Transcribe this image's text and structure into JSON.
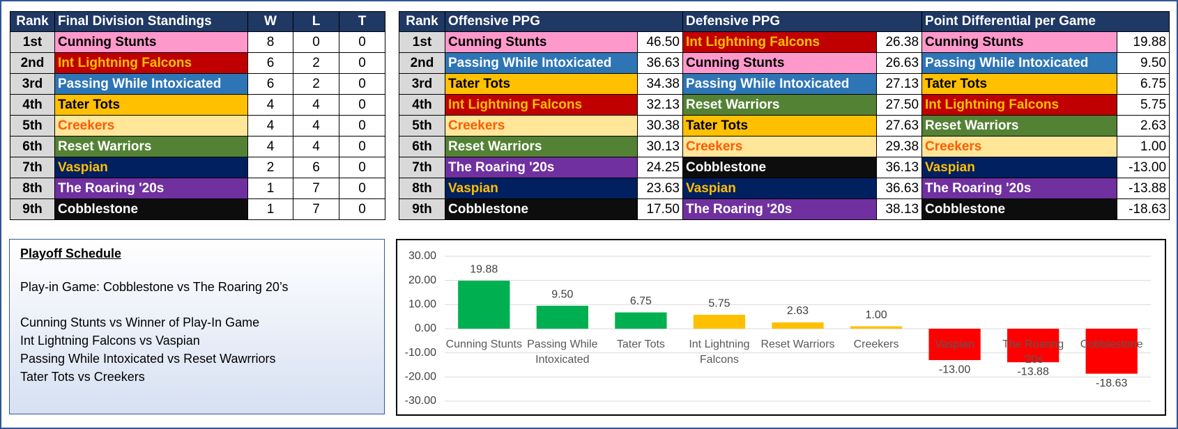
{
  "standings": {
    "header": [
      "Rank",
      "Final Division Standings",
      "W",
      "L",
      "T"
    ],
    "rows": [
      [
        "1st",
        {
          "text": "Cunning Stunts",
          "bg": "#ff99cc",
          "fg": "#000000"
        },
        8,
        0,
        0
      ],
      [
        "2nd",
        {
          "text": "Int Lightning Falcons",
          "bg": "#c00000",
          "fg": "#ffc000"
        },
        6,
        2,
        0
      ],
      [
        "3rd",
        {
          "text": "Passing While Intoxicated",
          "bg": "#2e75b6",
          "fg": "#ffffff"
        },
        6,
        2,
        0
      ],
      [
        "4th",
        {
          "text": "Tater Tots",
          "bg": "#ffc000",
          "fg": "#000000"
        },
        4,
        4,
        0
      ],
      [
        "5th",
        {
          "text": "Creekers",
          "bg": "#ffe699",
          "fg": "#ff5b00"
        },
        4,
        4,
        0
      ],
      [
        "6th",
        {
          "text": "Reset Warriors",
          "bg": "#548235",
          "fg": "#ffffff"
        },
        4,
        4,
        0
      ],
      [
        "7th",
        {
          "text": "Vaspian",
          "bg": "#002060",
          "fg": "#ffc000"
        },
        2,
        6,
        0
      ],
      [
        "8th",
        {
          "text": "The Roaring '20s",
          "bg": "#7030a0",
          "fg": "#ffffff"
        },
        1,
        7,
        0
      ],
      [
        "9th",
        {
          "text": "Cobblestone",
          "bg": "#0d0d0d",
          "fg": "#ffffff"
        },
        1,
        7,
        0
      ]
    ]
  },
  "stats": {
    "header": [
      "Rank",
      "Offensive PPG",
      "Defensive PPG",
      "Point Differential per Game"
    ],
    "rows": [
      [
        "1st",
        {
          "text": "Cunning Stunts",
          "bg": "#ff99cc",
          "fg": "#000000"
        },
        "46.50",
        {
          "text": "Int Lightning Falcons",
          "bg": "#c00000",
          "fg": "#ffc000"
        },
        "26.38",
        {
          "text": "Cunning Stunts",
          "bg": "#ff99cc",
          "fg": "#000000"
        },
        "19.88"
      ],
      [
        "2nd",
        {
          "text": "Passing While Intoxicated",
          "bg": "#2e75b6",
          "fg": "#ffffff"
        },
        "36.63",
        {
          "text": "Cunning Stunts",
          "bg": "#ff99cc",
          "fg": "#000000"
        },
        "26.63",
        {
          "text": "Passing While Intoxicated",
          "bg": "#2e75b6",
          "fg": "#ffffff"
        },
        "9.50"
      ],
      [
        "3rd",
        {
          "text": "Tater Tots",
          "bg": "#ffc000",
          "fg": "#000000"
        },
        "34.38",
        {
          "text": "Passing While Intoxicated",
          "bg": "#2e75b6",
          "fg": "#ffffff"
        },
        "27.13",
        {
          "text": "Tater Tots",
          "bg": "#ffc000",
          "fg": "#000000"
        },
        "6.75"
      ],
      [
        "4th",
        {
          "text": "Int Lightning Falcons",
          "bg": "#c00000",
          "fg": "#ffc000"
        },
        "32.13",
        {
          "text": "Reset Warriors",
          "bg": "#548235",
          "fg": "#ffffff"
        },
        "27.50",
        {
          "text": "Int Lightning Falcons",
          "bg": "#c00000",
          "fg": "#ffc000"
        },
        "5.75"
      ],
      [
        "5th",
        {
          "text": "Creekers",
          "bg": "#ffe699",
          "fg": "#ff5b00"
        },
        "30.38",
        {
          "text": "Tater Tots",
          "bg": "#ffc000",
          "fg": "#000000"
        },
        "27.63",
        {
          "text": "Reset Warriors",
          "bg": "#548235",
          "fg": "#ffffff"
        },
        "2.63"
      ],
      [
        "6th",
        {
          "text": "Reset Warriors",
          "bg": "#548235",
          "fg": "#ffffff"
        },
        "30.13",
        {
          "text": "Creekers",
          "bg": "#ffe699",
          "fg": "#ff5b00"
        },
        "29.38",
        {
          "text": "Creekers",
          "bg": "#ffe699",
          "fg": "#ff5b00"
        },
        "1.00"
      ],
      [
        "7th",
        {
          "text": "The Roaring '20s",
          "bg": "#7030a0",
          "fg": "#ffffff"
        },
        "24.25",
        {
          "text": "Cobblestone",
          "bg": "#0d0d0d",
          "fg": "#ffffff"
        },
        "36.13",
        {
          "text": "Vaspian",
          "bg": "#002060",
          "fg": "#ffc000"
        },
        "-13.00"
      ],
      [
        "8th",
        {
          "text": "Vaspian",
          "bg": "#002060",
          "fg": "#ffc000"
        },
        "23.63",
        {
          "text": "Vaspian",
          "bg": "#002060",
          "fg": "#ffc000"
        },
        "36.63",
        {
          "text": "The Roaring '20s",
          "bg": "#7030a0",
          "fg": "#ffffff"
        },
        "-13.88"
      ],
      [
        "9th",
        {
          "text": "Cobblestone",
          "bg": "#0d0d0d",
          "fg": "#ffffff"
        },
        "17.50",
        {
          "text": "The Roaring '20s",
          "bg": "#7030a0",
          "fg": "#ffffff"
        },
        "38.13",
        {
          "text": "Cobblestone",
          "bg": "#0d0d0d",
          "fg": "#ffffff"
        },
        "-18.63"
      ]
    ]
  },
  "playoff": {
    "title": "Playoff Schedule",
    "play_in": "Play-in Game: Cobblestone vs The Roaring 20’s",
    "matchups": [
      "Cunning Stunts vs Winner of Play-In Game",
      "Int Lightning Falcons vs Vaspian",
      "Passing While Intoxicated vs Reset Wawrriors",
      "Tater Tots vs Creekers"
    ]
  },
  "chart_data": {
    "type": "bar",
    "categories": [
      "Cunning Stunts",
      "Passing While Intoxicated",
      "Tater Tots",
      "Int Lightning Falcons",
      "Reset Warriors",
      "Creekers",
      "Vaspian",
      "The Roaring '20s",
      "Cobblestone"
    ],
    "values": [
      19.88,
      9.5,
      6.75,
      5.75,
      2.63,
      1.0,
      -13.0,
      -13.88,
      -18.63
    ],
    "value_labels": [
      "19.88",
      "9.50",
      "6.75",
      "5.75",
      "2.63",
      "1.00",
      "-13.00",
      "-13.88",
      "-18.63"
    ],
    "colors": [
      "#00b050",
      "#00b050",
      "#00b050",
      "#ffc000",
      "#ffc000",
      "#ffc000",
      "#ff0000",
      "#ff0000",
      "#ff0000"
    ],
    "ylim": [
      -30,
      30
    ],
    "yticks": [
      {
        "value": -30,
        "label": "-30.00"
      },
      {
        "value": -20,
        "label": "-20.00"
      },
      {
        "value": -10,
        "label": "-10.00"
      },
      {
        "value": 0,
        "label": "0.00"
      },
      {
        "value": 10,
        "label": "10.00"
      },
      {
        "value": 20,
        "label": "20.00"
      },
      {
        "value": 30,
        "label": "30.00"
      }
    ],
    "grid": true
  }
}
